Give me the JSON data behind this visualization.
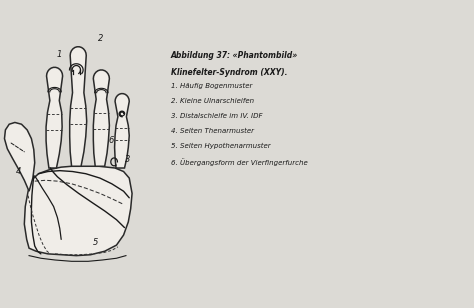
{
  "background_color": "#dcdad5",
  "hand_fill": "#f0ede8",
  "outline_color": "#2a2a2a",
  "line_color": "#1a1a1a",
  "dashed_color": "#333333",
  "text_color": "#1a1a1a",
  "legend_title_line1": "Abbildung 37: «Phantombild»",
  "legend_title_line2": "Klinefelter-Syndrom (XXY).",
  "legend_items": [
    "1. Häufig Bogenmuster",
    "2. Kleine Ulnarschleifen",
    "3. Distalschleife im IV. IDF",
    "4. Selten Thenarmuster",
    "5. Selten Hypothenarmuster",
    "6. Übergangsform der Vierfingerfurche"
  ],
  "num_labels": [
    "1",
    "2",
    "3",
    "4",
    "5",
    "6"
  ],
  "num_x": [
    1.18,
    2.05,
    2.62,
    0.32,
    1.95,
    2.28
  ],
  "num_y": [
    5.72,
    6.08,
    3.32,
    3.05,
    1.42,
    3.75
  ]
}
